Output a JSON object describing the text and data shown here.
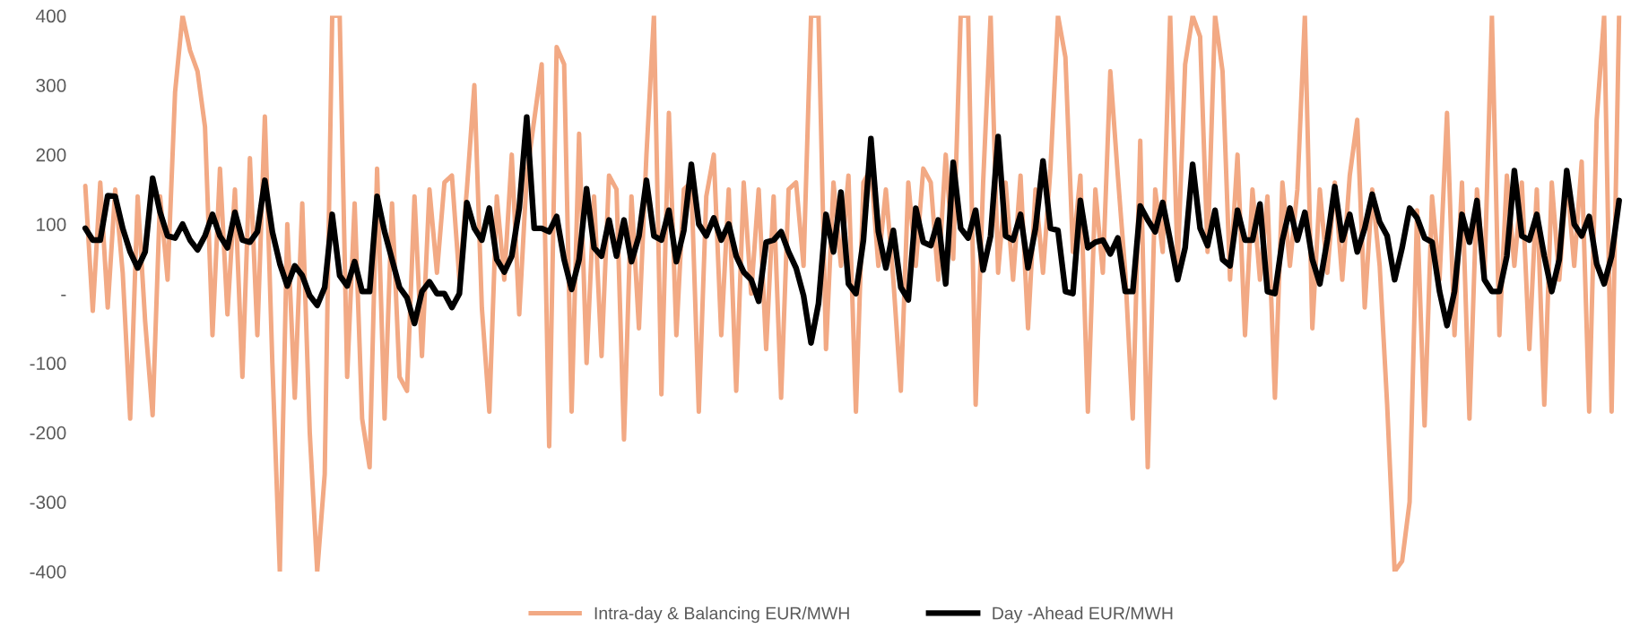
{
  "chart_data": {
    "type": "line",
    "categories": [
      null,
      null,
      null,
      null,
      null,
      null,
      null,
      null,
      null,
      null,
      null,
      null,
      null,
      null,
      null,
      null,
      null,
      null,
      null,
      null,
      null,
      null,
      null,
      null,
      null,
      null,
      null,
      null,
      null,
      null,
      null,
      null,
      null,
      null,
      null,
      null,
      null,
      null,
      null,
      null,
      null,
      null,
      null,
      null,
      null,
      null,
      null,
      null,
      null,
      null,
      null,
      null,
      null,
      null,
      null,
      null,
      null,
      null,
      null,
      null,
      null,
      null,
      null,
      null,
      null,
      null,
      null,
      null,
      null,
      null,
      null,
      null,
      null,
      null,
      null,
      null,
      null,
      null,
      null,
      null,
      null,
      null,
      null,
      null,
      null,
      null,
      null,
      null,
      null,
      null,
      null,
      null,
      null,
      null,
      null,
      null,
      null,
      null,
      null,
      null,
      null,
      null,
      null,
      null,
      null,
      null,
      null,
      null,
      null,
      null,
      null,
      null,
      null,
      null,
      null,
      null,
      null,
      null,
      null,
      null,
      null,
      null,
      null,
      null,
      null,
      null,
      null,
      null,
      null,
      null,
      null,
      null,
      null,
      null,
      null,
      null,
      null,
      null,
      null,
      null,
      null,
      null,
      null,
      null,
      null,
      null,
      null,
      null,
      null,
      null,
      null,
      null,
      null,
      null,
      null,
      null,
      null,
      null,
      null,
      null,
      null,
      null,
      null,
      null,
      null,
      null,
      null,
      null,
      null,
      null,
      null,
      null,
      null,
      null,
      null,
      null,
      null,
      null,
      null,
      null,
      null,
      null,
      null,
      null,
      null,
      null,
      null,
      null,
      null,
      null,
      null,
      null,
      null,
      null,
      null,
      null,
      null,
      null,
      null,
      null,
      null,
      null,
      null,
      null,
      null,
      null
    ],
    "ylim": [
      -400,
      400
    ],
    "yticks": [
      -400,
      -300,
      -200,
      -100,
      {
        "value": 0,
        "label": "-"
      },
      100,
      200,
      300,
      400
    ],
    "tick_labels": "y",
    "grid": false,
    "legend": "bottom",
    "series": [
      {
        "name": "Intra-day & Balancing EUR/MWH",
        "color": "#f2a984",
        "values": [
          155,
          -25,
          160,
          -20,
          150,
          30,
          -180,
          140,
          -40,
          -175,
          140,
          20,
          290,
          400,
          350,
          320,
          240,
          -60,
          180,
          -30,
          150,
          -120,
          195,
          -60,
          255,
          -100,
          -400,
          100,
          -150,
          130,
          -200,
          -400,
          -260,
          400,
          400,
          -120,
          130,
          -180,
          -250,
          180,
          -180,
          130,
          -120,
          -140,
          140,
          -90,
          150,
          30,
          160,
          170,
          20,
          150,
          300,
          -20,
          -170,
          140,
          20,
          200,
          -30,
          170,
          250,
          330,
          -220,
          355,
          330,
          -170,
          230,
          -100,
          140,
          -90,
          170,
          150,
          -210,
          140,
          -50,
          200,
          400,
          -145,
          260,
          -60,
          150,
          160,
          -170,
          140,
          200,
          -60,
          150,
          -140,
          160,
          0,
          150,
          -80,
          140,
          -150,
          150,
          160,
          40,
          400,
          400,
          -80,
          160,
          40,
          170,
          -170,
          160,
          180,
          40,
          150,
          20,
          -140,
          160,
          40,
          180,
          160,
          20,
          200,
          50,
          400,
          400,
          -160,
          160,
          400,
          30,
          160,
          20,
          170,
          -50,
          150,
          30,
          180,
          400,
          340,
          60,
          170,
          -170,
          150,
          30,
          320,
          170,
          30,
          -180,
          220,
          -250,
          150,
          60,
          400,
          40,
          330,
          400,
          370,
          60,
          400,
          320,
          20,
          200,
          -60,
          150,
          20,
          140,
          -150,
          160,
          40,
          150,
          400,
          -50,
          150,
          30,
          160,
          20,
          170,
          250,
          -20,
          150,
          40,
          -160,
          -400,
          -385,
          -300,
          120,
          -190,
          140,
          20,
          260,
          -60,
          160,
          -180,
          150,
          20,
          400,
          -60,
          170,
          40,
          160,
          -80,
          150,
          -160,
          160,
          20,
          170,
          40,
          190,
          -170,
          250,
          400,
          -170,
          400
        ]
      },
      {
        "name": "Day -Ahead EUR/MWH",
        "color": "#000000",
        "values": [
          94,
          77,
          77,
          141,
          140,
          94,
          60,
          37,
          60,
          166,
          117,
          83,
          80,
          100,
          77,
          63,
          83,
          114,
          83,
          66,
          117,
          77,
          74,
          89,
          163,
          89,
          43,
          11,
          40,
          26,
          -3,
          -17,
          9,
          114,
          26,
          11,
          46,
          3,
          3,
          140,
          89,
          49,
          9,
          -6,
          -43,
          3,
          17,
          0,
          0,
          -20,
          0,
          131,
          94,
          77,
          123,
          49,
          31,
          54,
          123,
          254,
          94,
          94,
          89,
          111,
          49,
          6,
          49,
          151,
          66,
          54,
          106,
          54,
          106,
          46,
          83,
          163,
          83,
          77,
          120,
          46,
          91,
          186,
          100,
          83,
          109,
          77,
          100,
          54,
          31,
          20,
          -11,
          74,
          77,
          89,
          60,
          37,
          -3,
          -71,
          -14,
          114,
          60,
          146,
          14,
          0,
          77,
          223,
          89,
          37,
          91,
          9,
          -9,
          123,
          74,
          69,
          106,
          14,
          189,
          94,
          80,
          120,
          34,
          83,
          226,
          83,
          77,
          114,
          37,
          94,
          191,
          94,
          91,
          3,
          0,
          134,
          66,
          74,
          77,
          57,
          80,
          3,
          3,
          126,
          106,
          89,
          131,
          77,
          20,
          66,
          186,
          94,
          69,
          120,
          49,
          40,
          120,
          77,
          77,
          129,
          3,
          0,
          77,
          123,
          77,
          117,
          49,
          14,
          77,
          154,
          77,
          114,
          60,
          94,
          143,
          103,
          83,
          20,
          66,
          123,
          109,
          80,
          74,
          3,
          -46,
          3,
          114,
          74,
          134,
          20,
          3,
          3,
          54,
          177,
          83,
          77,
          114,
          54,
          3,
          49,
          177,
          100,
          83,
          111,
          43,
          14,
          54,
          134
        ]
      }
    ]
  }
}
